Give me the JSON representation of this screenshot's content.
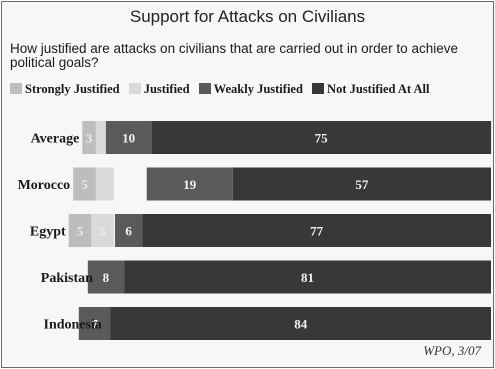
{
  "chart_data": {
    "type": "bar",
    "orientation": "horizontal",
    "stacked": "diverging",
    "title": "Support for Attacks on Civilians",
    "subtitle": "How justified are attacks on civilians that are carried out in order to achieve political goals?",
    "categories": [
      "Average",
      "Morocco",
      "Egypt",
      "Pakistan",
      "Indonesia"
    ],
    "series": [
      {
        "name": "Strongly Justified",
        "values": [
          3,
          5,
          5,
          3,
          1
        ],
        "labels": [
          "3",
          "5",
          "5",
          "3",
          ""
        ],
        "color": "#c9c9c9"
      },
      {
        "name": "Justified",
        "values": [
          4,
          4,
          5,
          1,
          1
        ],
        "labels": [
          "",
          "",
          "5",
          "",
          ""
        ],
        "color": "#dddddd"
      },
      {
        "name": "Weakly Justified",
        "values": [
          10,
          19,
          6,
          8,
          7
        ],
        "labels": [
          "10",
          "19",
          "6",
          "8",
          "7"
        ],
        "color": "#5a5a5a"
      },
      {
        "name": "Not Justified At All",
        "values": [
          75,
          57,
          77,
          81,
          84
        ],
        "labels": [
          "75",
          "57",
          "77",
          "81",
          "84"
        ],
        "color": "#3a3a3a"
      }
    ],
    "legend_position": "top",
    "grid": false,
    "source": "WPO, 3/07"
  },
  "legend_colors": {
    "Strongly Justified": "#bdbdbd",
    "Justified": "#dadada",
    "Weakly Justified": "#5a5a5a",
    "Not Justified At All": "#383838"
  }
}
